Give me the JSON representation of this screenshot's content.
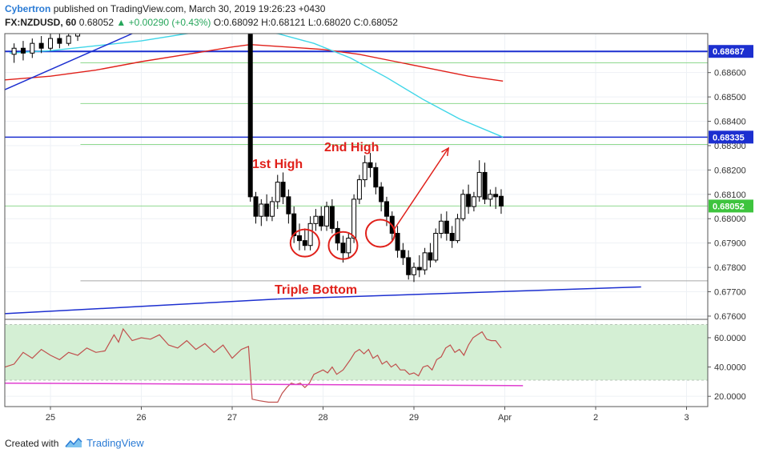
{
  "header": {
    "author": "Cybertron",
    "published_text": "published on TradingView.com, March 30, 2019 19:26:23 +0430"
  },
  "symbol_line": {
    "symbol": "FX:NZDUSD, 60",
    "last": "0.68052",
    "change": "+0.00290 (+0.43%)",
    "ohlc": "O:0.68092 H:0.68121 L:0.68020 C:0.68052"
  },
  "footer": {
    "created_with": "Created with",
    "brand": "TradingView"
  },
  "colors": {
    "up": "#26a65b",
    "author": "#2a7bd5",
    "trend_line": "#1c2fd0",
    "ma_red": "#e0201a",
    "ma_cyan": "#3fd6e8",
    "fib_green": "#8fd98f",
    "rsi_line": "#c0504d",
    "rsi_band": "#d4efd4",
    "rsi_support": "#e03ed0",
    "price_badge_green": "#3ec43e"
  },
  "chart_data": [
    {
      "type": "candlestick",
      "symbol": "FX:NZDUSD",
      "timeframe": "60",
      "x_ticks": [
        "25",
        "26",
        "27",
        "28",
        "29",
        "Apr",
        "2",
        "3"
      ],
      "y_ticks": [
        "0.68600",
        "0.68500",
        "0.68400",
        "0.68300",
        "0.68200",
        "0.68100",
        "0.68000",
        "0.67900",
        "0.67800",
        "0.67700",
        "0.67600"
      ],
      "ylim": [
        0.6759,
        0.6876
      ],
      "price_labels": [
        {
          "value": "0.68687",
          "style": "blue"
        },
        {
          "value": "0.68335",
          "style": "blue"
        },
        {
          "value": "0.68052",
          "style": "green"
        }
      ],
      "annotations": [
        "1st High",
        "2nd High",
        "Triple Bottom"
      ],
      "horizontal_levels": [
        0.68687,
        0.68335,
        0.6864,
        0.68473,
        0.68305,
        0.68052,
        0.67745
      ],
      "trendlines": [
        {
          "from": [
            24.5,
            0.6853
          ],
          "to": [
            25.9,
            0.6876
          ]
        },
        {
          "from": [
            24.5,
            0.6761
          ],
          "to": [
            27.5,
            0.6767
          ]
        },
        {
          "from": [
            27.5,
            0.6767
          ],
          "to": [
            31.5,
            0.6772
          ]
        }
      ],
      "projection_arrow": {
        "from": [
          28.78,
          0.67955
        ],
        "to": [
          29.38,
          0.6829
        ]
      },
      "bottom_circles": [
        [
          27.8,
          0.679
        ],
        [
          28.22,
          0.6789
        ],
        [
          28.63,
          0.6794
        ]
      ],
      "moving_averages": [
        {
          "name": "",
          "color": "red",
          "points": [
            [
              24.5,
              0.6857
            ],
            [
              25.0,
              0.68585
            ],
            [
              25.5,
              0.6861
            ],
            [
              26.0,
              0.68645
            ],
            [
              26.5,
              0.68675
            ],
            [
              27.0,
              0.68705
            ],
            [
              27.2,
              0.68715
            ],
            [
              27.6,
              0.68705
            ],
            [
              28.0,
              0.68695
            ],
            [
              28.4,
              0.68675
            ],
            [
              28.8,
              0.68645
            ],
            [
              29.2,
              0.68615
            ],
            [
              29.6,
              0.68585
            ],
            [
              29.98,
              0.68565
            ]
          ]
        },
        {
          "name": "",
          "color": "cyan",
          "points": [
            [
              24.55,
              0.6868
            ],
            [
              25.0,
              0.6869
            ],
            [
              25.5,
              0.6871
            ],
            [
              26.0,
              0.6873
            ],
            [
              26.5,
              0.6876
            ],
            [
              27.0,
              0.6878
            ],
            [
              27.5,
              0.6876
            ],
            [
              27.9,
              0.6872
            ],
            [
              28.3,
              0.6866
            ],
            [
              28.7,
              0.6858
            ],
            [
              29.1,
              0.6849
            ],
            [
              29.5,
              0.6841
            ],
            [
              29.98,
              0.68335
            ]
          ]
        }
      ],
      "candles": [
        {
          "x": 24.6,
          "o": 0.68675,
          "h": 0.6872,
          "l": 0.6864,
          "c": 0.687
        },
        {
          "x": 24.7,
          "o": 0.687,
          "h": 0.6873,
          "l": 0.6865,
          "c": 0.6868
        },
        {
          "x": 24.8,
          "o": 0.6868,
          "h": 0.6874,
          "l": 0.6866,
          "c": 0.6872
        },
        {
          "x": 24.9,
          "o": 0.6872,
          "h": 0.6875,
          "l": 0.6868,
          "c": 0.687
        },
        {
          "x": 25.0,
          "o": 0.687,
          "h": 0.6876,
          "l": 0.6869,
          "c": 0.6874
        },
        {
          "x": 25.1,
          "o": 0.6874,
          "h": 0.6877,
          "l": 0.687,
          "c": 0.6872
        },
        {
          "x": 25.2,
          "o": 0.6872,
          "h": 0.6877,
          "l": 0.6871,
          "c": 0.6875
        },
        {
          "x": 25.3,
          "o": 0.6875,
          "h": 0.6879,
          "l": 0.6873,
          "c": 0.6876
        },
        {
          "x": 27.2,
          "o": 0.6877,
          "h": 0.6878,
          "l": 0.6807,
          "c": 0.6809
        },
        {
          "x": 27.26,
          "o": 0.6809,
          "h": 0.6811,
          "l": 0.6798,
          "c": 0.6801
        },
        {
          "x": 27.32,
          "o": 0.6801,
          "h": 0.6808,
          "l": 0.6797,
          "c": 0.6806
        },
        {
          "x": 27.38,
          "o": 0.6806,
          "h": 0.681,
          "l": 0.6799,
          "c": 0.6801
        },
        {
          "x": 27.44,
          "o": 0.6801,
          "h": 0.6809,
          "l": 0.6799,
          "c": 0.6807
        },
        {
          "x": 27.5,
          "o": 0.6807,
          "h": 0.6818,
          "l": 0.6804,
          "c": 0.6815
        },
        {
          "x": 27.56,
          "o": 0.6815,
          "h": 0.6819,
          "l": 0.6806,
          "c": 0.6809
        },
        {
          "x": 27.62,
          "o": 0.6809,
          "h": 0.6812,
          "l": 0.6798,
          "c": 0.6802
        },
        {
          "x": 27.68,
          "o": 0.6802,
          "h": 0.6805,
          "l": 0.679,
          "c": 0.6793
        },
        {
          "x": 27.74,
          "o": 0.6793,
          "h": 0.6798,
          "l": 0.6787,
          "c": 0.6791
        },
        {
          "x": 27.8,
          "o": 0.6791,
          "h": 0.6796,
          "l": 0.6787,
          "c": 0.6789
        },
        {
          "x": 27.86,
          "o": 0.6789,
          "h": 0.6801,
          "l": 0.6787,
          "c": 0.6798
        },
        {
          "x": 27.92,
          "o": 0.6798,
          "h": 0.6804,
          "l": 0.6795,
          "c": 0.6801
        },
        {
          "x": 27.98,
          "o": 0.6801,
          "h": 0.6805,
          "l": 0.6795,
          "c": 0.6797
        },
        {
          "x": 28.04,
          "o": 0.6797,
          "h": 0.6807,
          "l": 0.6795,
          "c": 0.6805
        },
        {
          "x": 28.1,
          "o": 0.6805,
          "h": 0.6808,
          "l": 0.6794,
          "c": 0.6796
        },
        {
          "x": 28.16,
          "o": 0.6796,
          "h": 0.6799,
          "l": 0.6787,
          "c": 0.679
        },
        {
          "x": 28.22,
          "o": 0.679,
          "h": 0.6793,
          "l": 0.6782,
          "c": 0.6786
        },
        {
          "x": 28.28,
          "o": 0.6786,
          "h": 0.6794,
          "l": 0.6784,
          "c": 0.6792
        },
        {
          "x": 28.34,
          "o": 0.6792,
          "h": 0.681,
          "l": 0.679,
          "c": 0.6808
        },
        {
          "x": 28.4,
          "o": 0.6808,
          "h": 0.6818,
          "l": 0.6806,
          "c": 0.6816
        },
        {
          "x": 28.46,
          "o": 0.6816,
          "h": 0.6826,
          "l": 0.6813,
          "c": 0.6823
        },
        {
          "x": 28.52,
          "o": 0.6823,
          "h": 0.6827,
          "l": 0.6817,
          "c": 0.6821
        },
        {
          "x": 28.58,
          "o": 0.6821,
          "h": 0.6823,
          "l": 0.681,
          "c": 0.6813
        },
        {
          "x": 28.64,
          "o": 0.6813,
          "h": 0.6815,
          "l": 0.6803,
          "c": 0.6807
        },
        {
          "x": 28.7,
          "o": 0.6807,
          "h": 0.6809,
          "l": 0.6797,
          "c": 0.6801
        },
        {
          "x": 28.76,
          "o": 0.6801,
          "h": 0.6803,
          "l": 0.6791,
          "c": 0.6794
        },
        {
          "x": 28.82,
          "o": 0.6794,
          "h": 0.6797,
          "l": 0.6784,
          "c": 0.6787
        },
        {
          "x": 28.88,
          "o": 0.6787,
          "h": 0.679,
          "l": 0.6781,
          "c": 0.6784
        },
        {
          "x": 28.94,
          "o": 0.6784,
          "h": 0.6787,
          "l": 0.6775,
          "c": 0.6777
        },
        {
          "x": 29.0,
          "o": 0.6777,
          "h": 0.6782,
          "l": 0.6774,
          "c": 0.678
        },
        {
          "x": 29.06,
          "o": 0.678,
          "h": 0.6785,
          "l": 0.6776,
          "c": 0.6779
        },
        {
          "x": 29.12,
          "o": 0.6779,
          "h": 0.6788,
          "l": 0.6777,
          "c": 0.6786
        },
        {
          "x": 29.18,
          "o": 0.6786,
          "h": 0.679,
          "l": 0.678,
          "c": 0.6783
        },
        {
          "x": 29.24,
          "o": 0.6783,
          "h": 0.6796,
          "l": 0.6782,
          "c": 0.6794
        },
        {
          "x": 29.3,
          "o": 0.6794,
          "h": 0.6802,
          "l": 0.6792,
          "c": 0.6799
        },
        {
          "x": 29.36,
          "o": 0.6799,
          "h": 0.6803,
          "l": 0.6791,
          "c": 0.6794
        },
        {
          "x": 29.42,
          "o": 0.6794,
          "h": 0.6797,
          "l": 0.6788,
          "c": 0.6791
        },
        {
          "x": 29.48,
          "o": 0.6791,
          "h": 0.6802,
          "l": 0.679,
          "c": 0.68
        },
        {
          "x": 29.54,
          "o": 0.68,
          "h": 0.6812,
          "l": 0.6799,
          "c": 0.681
        },
        {
          "x": 29.6,
          "o": 0.681,
          "h": 0.6814,
          "l": 0.6802,
          "c": 0.6805
        },
        {
          "x": 29.66,
          "o": 0.6805,
          "h": 0.6811,
          "l": 0.6803,
          "c": 0.6809
        },
        {
          "x": 29.72,
          "o": 0.6809,
          "h": 0.6824,
          "l": 0.6807,
          "c": 0.6819
        },
        {
          "x": 29.78,
          "o": 0.6819,
          "h": 0.6823,
          "l": 0.6806,
          "c": 0.6808
        },
        {
          "x": 29.84,
          "o": 0.6808,
          "h": 0.6812,
          "l": 0.6805,
          "c": 0.681
        },
        {
          "x": 29.9,
          "o": 0.681,
          "h": 0.6813,
          "l": 0.6804,
          "c": 0.6809
        },
        {
          "x": 29.96,
          "o": 0.68092,
          "h": 0.68121,
          "l": 0.6802,
          "c": 0.68052
        }
      ]
    },
    {
      "type": "line",
      "name": "RSI",
      "y_ticks": [
        "60.0000",
        "40.0000",
        "20.0000"
      ],
      "ylim": [
        13,
        72
      ],
      "band": [
        31,
        69
      ],
      "support_line": {
        "from": [
          24.5,
          29.0
        ],
        "to": [
          30.2,
          27.3
        ]
      },
      "points": [
        [
          24.5,
          40
        ],
        [
          24.6,
          42
        ],
        [
          24.7,
          50
        ],
        [
          24.8,
          46
        ],
        [
          24.9,
          52
        ],
        [
          25.0,
          48
        ],
        [
          25.1,
          45
        ],
        [
          25.2,
          50
        ],
        [
          25.3,
          48
        ],
        [
          25.4,
          53
        ],
        [
          25.5,
          50
        ],
        [
          25.6,
          51
        ],
        [
          25.7,
          62
        ],
        [
          25.75,
          57
        ],
        [
          25.8,
          66
        ],
        [
          25.9,
          58
        ],
        [
          26.0,
          60
        ],
        [
          26.1,
          59
        ],
        [
          26.2,
          62
        ],
        [
          26.3,
          55
        ],
        [
          26.4,
          53
        ],
        [
          26.5,
          58
        ],
        [
          26.6,
          52
        ],
        [
          26.7,
          56
        ],
        [
          26.8,
          50
        ],
        [
          26.9,
          55
        ],
        [
          27.0,
          46
        ],
        [
          27.1,
          52
        ],
        [
          27.18,
          54
        ],
        [
          27.22,
          18
        ],
        [
          27.3,
          17
        ],
        [
          27.4,
          16
        ],
        [
          27.5,
          16
        ],
        [
          27.55,
          22
        ],
        [
          27.6,
          26
        ],
        [
          27.65,
          29
        ],
        [
          27.7,
          28
        ],
        [
          27.75,
          29
        ],
        [
          27.8,
          26
        ],
        [
          27.85,
          29
        ],
        [
          27.9,
          35
        ],
        [
          28.0,
          38
        ],
        [
          28.05,
          36
        ],
        [
          28.1,
          40
        ],
        [
          28.15,
          35
        ],
        [
          28.22,
          38
        ],
        [
          28.3,
          45
        ],
        [
          28.35,
          50
        ],
        [
          28.4,
          52
        ],
        [
          28.45,
          49
        ],
        [
          28.5,
          52
        ],
        [
          28.55,
          46
        ],
        [
          28.6,
          48
        ],
        [
          28.65,
          42
        ],
        [
          28.7,
          44
        ],
        [
          28.75,
          40
        ],
        [
          28.8,
          42
        ],
        [
          28.85,
          38
        ],
        [
          28.9,
          38
        ],
        [
          28.95,
          35
        ],
        [
          29.0,
          36
        ],
        [
          29.05,
          34
        ],
        [
          29.1,
          40
        ],
        [
          29.15,
          41
        ],
        [
          29.2,
          38
        ],
        [
          29.25,
          45
        ],
        [
          29.3,
          47
        ],
        [
          29.35,
          53
        ],
        [
          29.4,
          55
        ],
        [
          29.45,
          50
        ],
        [
          29.5,
          52
        ],
        [
          29.55,
          48
        ],
        [
          29.6,
          55
        ],
        [
          29.65,
          60
        ],
        [
          29.7,
          62
        ],
        [
          29.75,
          64
        ],
        [
          29.8,
          59
        ],
        [
          29.85,
          58
        ],
        [
          29.9,
          58
        ],
        [
          29.96,
          53
        ]
      ]
    }
  ]
}
